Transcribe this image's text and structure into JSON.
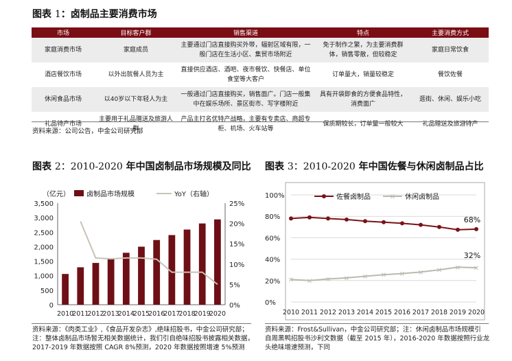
{
  "figure1": {
    "title_prefix": "图表 ",
    "title_num": "1",
    "title_text": "：卤制品主要消费市场",
    "headers": [
      "市场",
      "目标客户群",
      "销售渠道",
      "特点",
      "主要消费方式"
    ],
    "rows": [
      [
        "家庭消费市场",
        "家庭成员",
        "主要通过门店直接购买外带，辐射区域有限，一般门店在生活小区、集贸市场附近",
        "免于制作之繁，为主要消费群体，销售零散，但较稳定",
        "家庭日常饮食"
      ],
      [
        "酒店餐饮市场",
        "以外出就餐人员为主",
        "直接供应酒店、酒吧、夜市餐饮、快餐店、单位食堂等大客户",
        "订单量大，销量较稳定",
        "餐饮佐餐"
      ],
      [
        "休闲食品市场",
        "以40岁以下年轻人为主",
        "一般通过门店直接购买，销售面广。门店一般集中在娱乐场所、景区街市、写字楼附近",
        "具有开袋即食的方便食品特性，消费面广",
        "逛街、休闲、娱乐小吃"
      ],
      [
        "礼品特产市场",
        "主要用于礼品赠送及旅游人群",
        "产品主打名优特产战略，主要有专卖店、商超专柜、机场、火车站等",
        "保质期较长，订单量一般较大",
        "礼品赠送及旅游特产"
      ]
    ],
    "source": "资料来源：公司公告，中金公司研究部"
  },
  "figure2": {
    "title_prefix": "图表 ",
    "title_num": "2：2010-2020",
    "title_text": " 年中国卤制品市场规模及同比",
    "source_lines": [
      "资料来源：《肉类工业》,《食品开发杂志》,绝味招股书，中金公司研究部；",
      "注：整体卤制品市场暂无相关数据统计，我们引自绝味招股书披露相关数据，",
      "2017-2019 年数据按照 CAGR 8%预测，2020 年数据按照增速 5%预测"
    ]
  },
  "figure3": {
    "title_prefix": "图表 ",
    "title_num": "3：2010-2020",
    "title_text": " 年中国佐餐与休闲卤制品占比",
    "source_lines": [
      "资料来源：Frost&Sullivan，中金公司研究部；注：休闲卤制品市场规模引",
      "自周黑鸭招股书沙利文数据（截至 2015 年），2016-2020 年数据按照行业龙",
      "头绝味增速预测，下同"
    ]
  },
  "chart_data": [
    {
      "type": "bar",
      "categories": [
        "2010",
        "2011",
        "2012",
        "2013",
        "2014",
        "2015",
        "2016",
        "2017",
        "2018",
        "2019",
        "2020"
      ],
      "unit_label": "（亿元）",
      "series": [
        {
          "name": "卤制品市场规模",
          "type": "bar",
          "axis": "left",
          "color": "#6e0f16",
          "values": [
            1060,
            1290,
            1440,
            1600,
            1790,
            2000,
            2230,
            2400,
            2590,
            2800,
            2940
          ]
        },
        {
          "name": "YoY（右轴）",
          "type": "line",
          "axis": "right",
          "color": "#c8c2b8",
          "values": [
            null,
            0.205,
            0.115,
            0.113,
            0.115,
            0.115,
            0.112,
            0.08,
            0.08,
            0.08,
            0.05
          ]
        }
      ],
      "y_left": {
        "min": 0,
        "max": 3500,
        "ticks": [
          "0",
          "500",
          "1,000",
          "1,500",
          "2,000",
          "2,500",
          "3,000",
          "3,500"
        ]
      },
      "y_right": {
        "min": 0,
        "max": 0.25,
        "ticks": [
          "0%",
          "5%",
          "10%",
          "15%",
          "20%",
          "25%"
        ]
      },
      "legend_position": "top"
    },
    {
      "type": "line",
      "categories": [
        "2010",
        "2011",
        "2012",
        "2013",
        "2014",
        "2015",
        "2016",
        "2017",
        "2018",
        "2019",
        "2020"
      ],
      "series": [
        {
          "name": "佐餐卤制品",
          "color": "#7a1218",
          "marker": "circle",
          "values": [
            0.78,
            0.79,
            0.78,
            0.77,
            0.755,
            0.745,
            0.735,
            0.72,
            0.7,
            0.675,
            0.68
          ]
        },
        {
          "name": "休闲卤制品",
          "color": "#b9b9b0",
          "marker": "x",
          "values": [
            0.21,
            0.2,
            0.215,
            0.225,
            0.24,
            0.255,
            0.265,
            0.28,
            0.3,
            0.325,
            0.32
          ]
        }
      ],
      "y": {
        "min": 0,
        "max": 1,
        "ticks": [
          "0%",
          "20%",
          "40%",
          "60%",
          "80%",
          "100%"
        ]
      },
      "annotations": [
        "68%",
        "32%"
      ],
      "legend_position": "top",
      "grid": true
    }
  ]
}
